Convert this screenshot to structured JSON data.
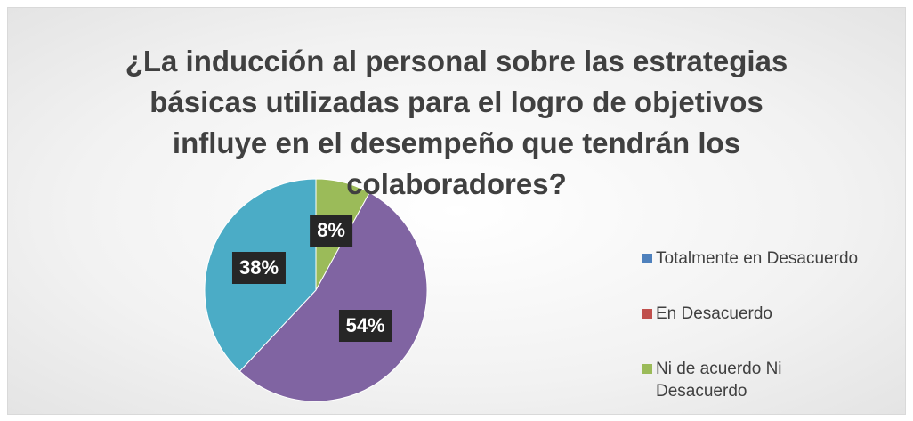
{
  "chart_data": {
    "type": "pie",
    "title": "¿La inducción al personal sobre las estrategias básicas utilizadas para el logro de objetivos influye en el desempeño que tendrán los colaboradores?",
    "categories": [
      "Totalmente en  Desacuerdo",
      "En Desacuerdo",
      "Ni de acuerdo Ni Desacuerdo",
      null,
      null
    ],
    "values": [
      0,
      0,
      8,
      54,
      38
    ],
    "value_labels": [
      null,
      null,
      "8%",
      "54%",
      "38%"
    ],
    "colors": [
      "#4f81bd",
      "#c0504d",
      "#9bbb59",
      "#8064a2",
      "#4bacc6"
    ],
    "legend": "right"
  }
}
